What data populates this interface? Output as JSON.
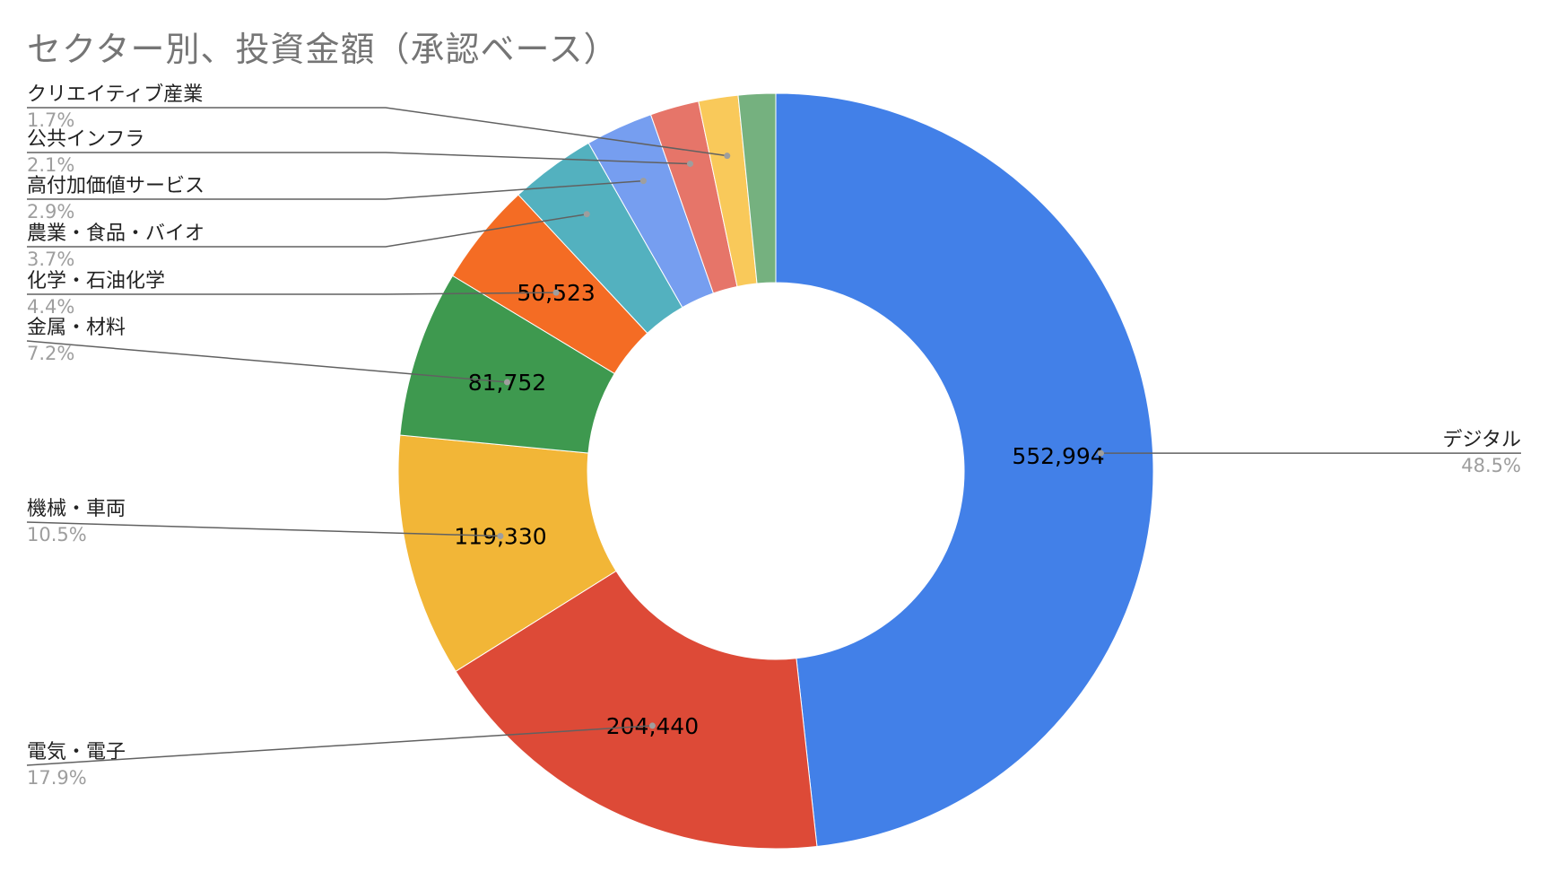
{
  "chart_data": {
    "type": "pie",
    "title": "セクター別、投資金額（承認ベース）",
    "donut": true,
    "legend": "labels-with-leader-lines",
    "slices": [
      {
        "name": "デジタル",
        "value": 552994,
        "value_label": "552,994",
        "percent_label": "48.5%",
        "color": "#4280e8"
      },
      {
        "name": "電気・電子",
        "value": 204440,
        "value_label": "204,440",
        "percent_label": "17.9%",
        "color": "#dd4a37"
      },
      {
        "name": "機械・車両",
        "value": 119330,
        "value_label": "119,330",
        "percent_label": "10.5%",
        "color": "#f2b637"
      },
      {
        "name": "金属・材料",
        "value": 81752,
        "value_label": "81,752",
        "percent_label": "7.2%",
        "color": "#3e994f"
      },
      {
        "name": "化学・石油化学",
        "value": 50523,
        "value_label": "50,523",
        "percent_label": "4.4%",
        "color": "#f46c24"
      },
      {
        "name": "農業・食品・バイオ",
        "percent": 3.7,
        "value_label": "",
        "percent_label": "3.7%",
        "color": "#53b1bf"
      },
      {
        "name": "高付加価値サービス",
        "percent": 2.9,
        "value_label": "",
        "percent_label": "2.9%",
        "color": "#769ef0"
      },
      {
        "name": "公共インフラ",
        "percent": 2.1,
        "value_label": "",
        "percent_label": "2.1%",
        "color": "#e67569"
      },
      {
        "name": "クリエイティブ産業",
        "percent": 1.7,
        "value_label": "",
        "percent_label": "1.7%",
        "color": "#f9c95a"
      },
      {
        "name": "",
        "percent": 1.6,
        "value_label": "",
        "percent_label": "",
        "color": "#75b17f"
      }
    ]
  }
}
